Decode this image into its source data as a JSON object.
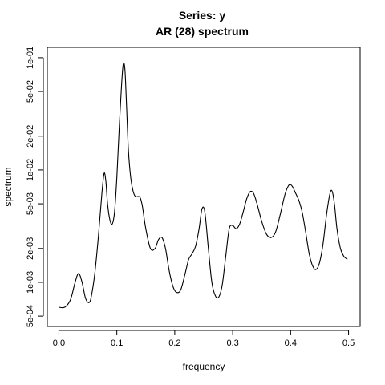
{
  "chart_data": {
    "type": "line",
    "title": "Series: y",
    "subtitle": "AR (28) spectrum",
    "xlabel": "frequency",
    "ylabel": "spectrum",
    "xlim": [
      0,
      0.5
    ],
    "ylim": [
      0.0005,
      0.1
    ],
    "y_scale": "log",
    "grid": false,
    "legend": "none",
    "line_color": "#000000",
    "x_ticks": [
      {
        "value": 0.0,
        "label": "0.0"
      },
      {
        "value": 0.1,
        "label": "0.1"
      },
      {
        "value": 0.2,
        "label": "0.2"
      },
      {
        "value": 0.3,
        "label": "0.3"
      },
      {
        "value": 0.4,
        "label": "0.4"
      },
      {
        "value": 0.5,
        "label": "0.5"
      }
    ],
    "y_ticks": [
      {
        "value": 0.0005,
        "label": "5e-04"
      },
      {
        "value": 0.001,
        "label": "1e-03"
      },
      {
        "value": 0.002,
        "label": "2e-03"
      },
      {
        "value": 0.005,
        "label": "5e-03"
      },
      {
        "value": 0.01,
        "label": "1e-02"
      },
      {
        "value": 0.02,
        "label": "2e-02"
      },
      {
        "value": 0.05,
        "label": "5e-02"
      },
      {
        "value": 0.1,
        "label": "1e-01"
      }
    ],
    "series": [
      {
        "x": [
          0.0,
          0.01,
          0.02,
          0.028,
          0.034,
          0.04,
          0.046,
          0.052,
          0.056,
          0.062,
          0.068,
          0.074,
          0.078,
          0.081,
          0.084,
          0.088,
          0.092,
          0.096,
          0.1,
          0.104,
          0.108,
          0.111,
          0.114,
          0.117,
          0.12,
          0.124,
          0.128,
          0.132,
          0.136,
          0.14,
          0.144,
          0.15,
          0.158,
          0.166,
          0.172,
          0.178,
          0.184,
          0.19,
          0.196,
          0.202,
          0.21,
          0.218,
          0.224,
          0.23,
          0.236,
          0.242,
          0.247,
          0.252,
          0.258,
          0.264,
          0.27,
          0.276,
          0.282,
          0.288,
          0.294,
          0.3,
          0.306,
          0.312,
          0.318,
          0.324,
          0.33,
          0.336,
          0.342,
          0.35,
          0.358,
          0.366,
          0.374,
          0.382,
          0.39,
          0.396,
          0.4,
          0.404,
          0.408,
          0.414,
          0.42,
          0.426,
          0.432,
          0.438,
          0.444,
          0.45,
          0.456,
          0.462,
          0.468,
          0.472,
          0.476,
          0.48,
          0.486,
          0.492,
          0.498
        ],
        "y": [
          0.0006,
          0.0006,
          0.0007,
          0.001,
          0.0012,
          0.001,
          0.00072,
          0.00066,
          0.00075,
          0.0012,
          0.0025,
          0.006,
          0.0093,
          0.008,
          0.005,
          0.0036,
          0.0033,
          0.0042,
          0.0085,
          0.023,
          0.055,
          0.087,
          0.078,
          0.035,
          0.015,
          0.0085,
          0.0065,
          0.0058,
          0.0058,
          0.0057,
          0.0048,
          0.003,
          0.002,
          0.002,
          0.0024,
          0.0025,
          0.002,
          0.0013,
          0.00095,
          0.00082,
          0.00085,
          0.0012,
          0.0016,
          0.0018,
          0.0021,
          0.003,
          0.0045,
          0.0042,
          0.002,
          0.001,
          0.00076,
          0.00074,
          0.00095,
          0.0017,
          0.003,
          0.0032,
          0.003,
          0.0033,
          0.0042,
          0.0055,
          0.0064,
          0.0062,
          0.005,
          0.0035,
          0.0027,
          0.0025,
          0.0028,
          0.004,
          0.006,
          0.0072,
          0.0074,
          0.007,
          0.0063,
          0.0054,
          0.0042,
          0.0028,
          0.0018,
          0.0014,
          0.0013,
          0.0015,
          0.0022,
          0.004,
          0.0062,
          0.0064,
          0.0048,
          0.003,
          0.002,
          0.0017,
          0.0016
        ]
      }
    ]
  }
}
